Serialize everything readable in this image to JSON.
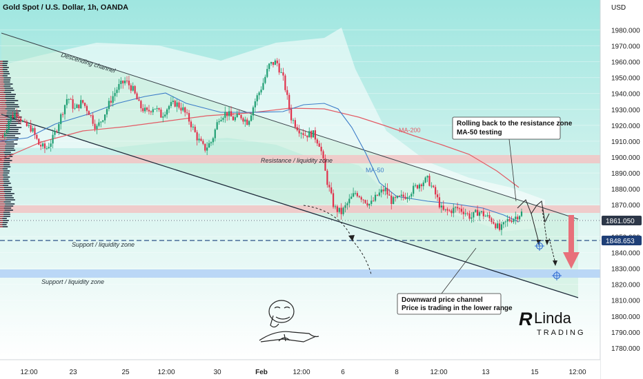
{
  "header": {
    "title": "Gold Spot / U.S. Dollar, 1h, OANDA",
    "currency": "USD"
  },
  "chart_data": {
    "type": "candlestick",
    "symbol": "Gold Spot / U.S. Dollar",
    "timeframe": "1h",
    "source": "OANDA",
    "ylim": [
      1772,
      1995
    ],
    "y_ticks": [
      1780,
      1790,
      1800,
      1810,
      1820,
      1830,
      1840,
      1850,
      1860,
      1870,
      1880,
      1890,
      1900,
      1910,
      1920,
      1930,
      1940,
      1950,
      1960,
      1970,
      1980
    ],
    "x_ticks": [
      "12:00",
      "23",
      "25",
      "12:00",
      "30",
      "Feb",
      "12:00",
      "6",
      "8",
      "12:00",
      "13",
      "15",
      "12:00"
    ],
    "price_path": [
      [
        1913,
        1925,
        1928,
        1920,
        1918,
        1908,
        1905,
        1912,
        1925,
        1938,
        1930,
        1935,
        1928,
        1918,
        1926,
        1936,
        1944,
        1948,
        1943,
        1932,
        1928,
        1932,
        1926,
        1932,
        1934,
        1930,
        1922,
        1912,
        1905,
        1910,
        1925,
        1928,
        1924,
        1926,
        1922,
        1935,
        1945,
        1958,
        1960,
        1948,
        1925,
        1918,
        1914,
        1915,
        1908,
        1885,
        1868,
        1865,
        1872,
        1878,
        1874,
        1870,
        1876,
        1880,
        1872,
        1874,
        1876,
        1880,
        1884,
        1886,
        1877,
        1866,
        1866,
        1868,
        1866,
        1862,
        1866,
        1863,
        1860,
        1854,
        1860,
        1862,
        1865
      ],
      [
        1872,
        1868,
        1862,
        1858,
        1847,
        1838
      ]
    ],
    "current_price": "1861.050",
    "support_price": "1848.653",
    "series": [
      {
        "name": "MA-200",
        "color": "#e35a64"
      },
      {
        "name": "MA-50",
        "color": "#3b7bc8"
      }
    ],
    "zones": [
      {
        "label": "Resistance / liquidity zone",
        "from": 1895,
        "to": 1900,
        "color": "#f2c4c4"
      },
      {
        "from": 1866,
        "to": 1871,
        "color": "#f2c4c4"
      },
      {
        "label": "Support / liquidity zone",
        "from": 1826,
        "to": 1831,
        "color": "#b7d5f5"
      }
    ],
    "annotations": [
      {
        "text": [
          "Rolling back to the resistance zone",
          "MA-50 testing"
        ]
      },
      {
        "text": [
          "Downward price channel",
          "Price is trading in the lower range"
        ]
      },
      {
        "text": "Descending channel"
      },
      {
        "text": "Support / liquidity zone"
      }
    ],
    "logo": "Linda Trading"
  }
}
